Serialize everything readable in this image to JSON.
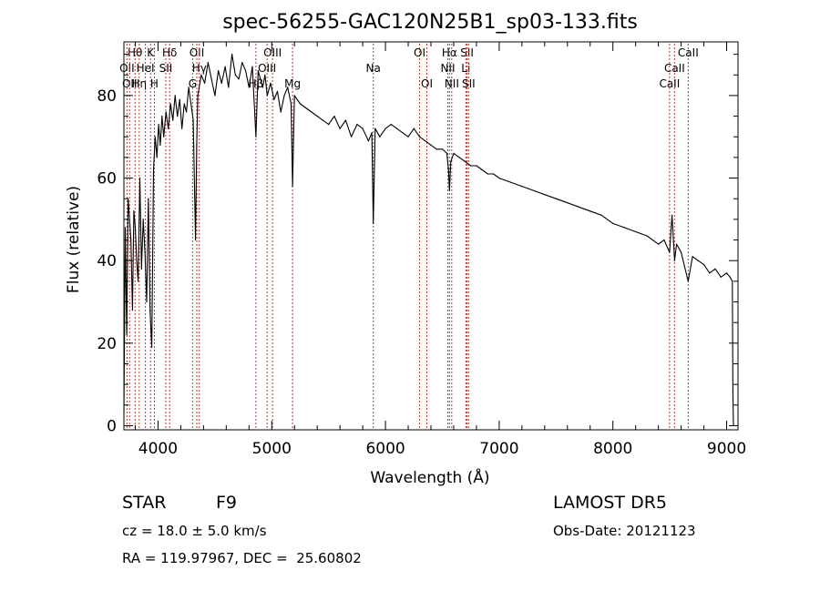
{
  "chart_data": {
    "type": "line",
    "title": "spec-56255-GAC120N25B1_sp03-133.fits",
    "xlabel": "Wavelength (Å)",
    "ylabel": "Flux (relative)",
    "xlim": [
      3700,
      9100
    ],
    "ylim": [
      -1,
      93
    ],
    "xticks": [
      4000,
      5000,
      6000,
      7000,
      8000,
      9000
    ],
    "yticks": [
      0,
      20,
      40,
      60,
      80
    ],
    "grid": false,
    "series": [
      {
        "x": [
          3700,
          3712,
          3725,
          3737,
          3750,
          3762,
          3775,
          3787,
          3800,
          3812,
          3825,
          3840,
          3855,
          3870,
          3885,
          3900,
          3915,
          3930,
          3945,
          3960,
          3975,
          3990,
          4005,
          4020,
          4035,
          4050,
          4070,
          4090,
          4110,
          4130,
          4150,
          4170,
          4190,
          4210,
          4230,
          4250,
          4270,
          4290,
          4310,
          4330,
          4340,
          4350,
          4380,
          4410,
          4440,
          4470,
          4500,
          4530,
          4560,
          4590,
          4620,
          4650,
          4680,
          4710,
          4740,
          4770,
          4800,
          4830,
          4861,
          4880,
          4900,
          4920,
          4940,
          4960,
          4990,
          5020,
          5050,
          5080,
          5110,
          5140,
          5170,
          5183,
          5200,
          5250,
          5300,
          5350,
          5400,
          5450,
          5500,
          5550,
          5600,
          5650,
          5700,
          5750,
          5800,
          5850,
          5880,
          5893,
          5910,
          5950,
          6000,
          6050,
          6100,
          6150,
          6200,
          6250,
          6300,
          6350,
          6400,
          6450,
          6500,
          6540,
          6555,
          6563,
          6575,
          6600,
          6650,
          6700,
          6750,
          6800,
          6850,
          6900,
          6950,
          7000,
          7100,
          7200,
          7300,
          7400,
          7500,
          7600,
          7700,
          7800,
          7900,
          8000,
          8100,
          8200,
          8300,
          8400,
          8450,
          8498,
          8520,
          8542,
          8560,
          8600,
          8662,
          8700,
          8750,
          8800,
          8850,
          8900,
          8950,
          9000,
          9030,
          9050,
          9055,
          9060
        ],
        "values": [
          3,
          48,
          22,
          55,
          50,
          45,
          28,
          52,
          48,
          40,
          35,
          60,
          38,
          50,
          42,
          30,
          55,
          28,
          19,
          62,
          70,
          65,
          73,
          68,
          75,
          70,
          76,
          72,
          78,
          74,
          80,
          75,
          79,
          72,
          78,
          76,
          82,
          78,
          74,
          45,
          68,
          80,
          85,
          83,
          88,
          84,
          80,
          86,
          83,
          87,
          82,
          90,
          85,
          84,
          88,
          86,
          82,
          87,
          70,
          86,
          84,
          82,
          85,
          80,
          83,
          79,
          81,
          76,
          80,
          82,
          78,
          58,
          80,
          78,
          77,
          76,
          75,
          74,
          73,
          75,
          72,
          74,
          70,
          73,
          72,
          69,
          71,
          49,
          72,
          70,
          72,
          73,
          72,
          71,
          70,
          72,
          70,
          69,
          68,
          67,
          67,
          66,
          62,
          57,
          64,
          66,
          65,
          64,
          63,
          63,
          62,
          61,
          61,
          60,
          59,
          58,
          57,
          56,
          55,
          54,
          53,
          52,
          51,
          49,
          48,
          47,
          46,
          44,
          45,
          42,
          51,
          40,
          44,
          42,
          35,
          41,
          40,
          39,
          37,
          38,
          36,
          37,
          36,
          35,
          8,
          0
        ]
      }
    ],
    "line_markers": [
      {
        "name": "Hθ",
        "x": 3798,
        "row": 0
      },
      {
        "name": "K",
        "x": 3934,
        "row": 0
      },
      {
        "name": "Hδ",
        "x": 4102,
        "row": 0
      },
      {
        "name": "OII",
        "x": 4341,
        "row": 0
      },
      {
        "name": "OIII",
        "x": 5007,
        "row": 0
      },
      {
        "name": "OI",
        "x": 6300,
        "row": 0
      },
      {
        "name": "Hα",
        "x": 6563,
        "row": 0
      },
      {
        "name": "SII",
        "x": 6717,
        "row": 0
      },
      {
        "name": "CaII",
        "x": 8662,
        "row": 0
      },
      {
        "name": "OII",
        "x": 3727,
        "row": 1
      },
      {
        "name": "HeI",
        "x": 3889,
        "row": 1
      },
      {
        "name": "SII",
        "x": 4068,
        "row": 1
      },
      {
        "name": "Hγ",
        "x": 4363,
        "row": 1
      },
      {
        "name": "OIII",
        "x": 4959,
        "row": 1
      },
      {
        "name": "Na",
        "x": 5893,
        "row": 1
      },
      {
        "name": "NII",
        "x": 6548,
        "row": 1
      },
      {
        "name": "Li",
        "x": 6707,
        "row": 1
      },
      {
        "name": "CaII",
        "x": 8542,
        "row": 1
      },
      {
        "name": "OII",
        "x": 3750,
        "row": 2
      },
      {
        "name": "Hη",
        "x": 3835,
        "row": 2
      },
      {
        "name": "H",
        "x": 3968,
        "row": 2
      },
      {
        "name": "G",
        "x": 4304,
        "row": 2
      },
      {
        "name": "Hβ",
        "x": 4861,
        "row": 2
      },
      {
        "name": "Mg",
        "x": 5183,
        "row": 2
      },
      {
        "name": "OI",
        "x": 6364,
        "row": 2
      },
      {
        "name": "NII",
        "x": 6583,
        "row": 2
      },
      {
        "name": "SII",
        "x": 6731,
        "row": 2
      },
      {
        "name": "CaII",
        "x": 8498,
        "row": 2
      }
    ]
  },
  "info": {
    "class_label": "STAR",
    "subclass": "F9",
    "survey": "LAMOST DR5",
    "cz": "cz = 18.0 ± 5.0 km/s",
    "obs_date": "Obs-Date: 20121123",
    "coords": "RA = 119.97967, DEC =  25.60802"
  },
  "colors": {
    "marker_line": "#c0392b",
    "axes": "#000000"
  }
}
